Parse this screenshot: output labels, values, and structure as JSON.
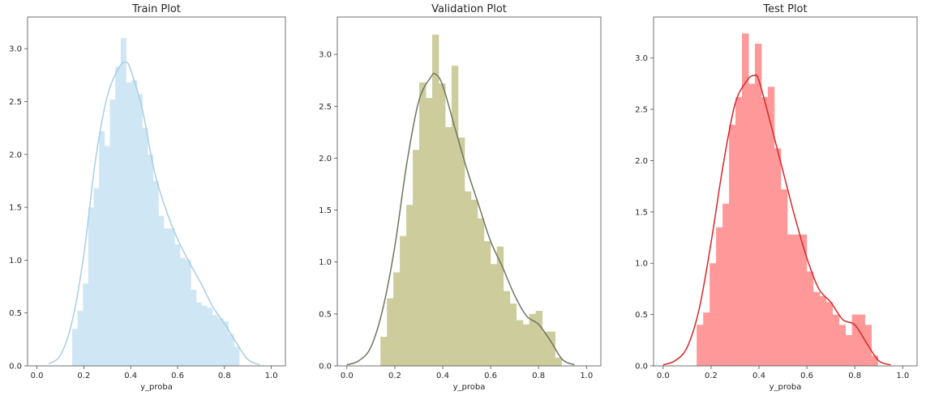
{
  "chart_data": [
    {
      "type": "histogram",
      "title": "Train Plot",
      "xlabel": "y_proba",
      "ylabel": "",
      "xlim": [
        -0.04,
        1.06
      ],
      "ylim": [
        0,
        3.3
      ],
      "xticks": [
        "0.0",
        "0.2",
        "0.4",
        "0.6",
        "0.8",
        "1.0"
      ],
      "yticks": [
        "0.0",
        "0.5",
        "1.0",
        "1.5",
        "2.0",
        "2.5",
        "3.0"
      ],
      "bar_color": "#cfe7f5",
      "kde_color": "#a9cde4",
      "grid": false,
      "bins": [
        {
          "x0": 0.15,
          "x1": 0.173,
          "y": 0.35
        },
        {
          "x0": 0.173,
          "x1": 0.196,
          "y": 0.52
        },
        {
          "x0": 0.196,
          "x1": 0.219,
          "y": 0.78
        },
        {
          "x0": 0.219,
          "x1": 0.242,
          "y": 1.5
        },
        {
          "x0": 0.242,
          "x1": 0.265,
          "y": 1.68
        },
        {
          "x0": 0.265,
          "x1": 0.288,
          "y": 2.22
        },
        {
          "x0": 0.288,
          "x1": 0.311,
          "y": 2.08
        },
        {
          "x0": 0.311,
          "x1": 0.334,
          "y": 2.52
        },
        {
          "x0": 0.334,
          "x1": 0.357,
          "y": 2.83
        },
        {
          "x0": 0.357,
          "x1": 0.38,
          "y": 3.1
        },
        {
          "x0": 0.38,
          "x1": 0.403,
          "y": 2.68
        },
        {
          "x0": 0.403,
          "x1": 0.426,
          "y": 2.7
        },
        {
          "x0": 0.426,
          "x1": 0.449,
          "y": 2.57
        },
        {
          "x0": 0.449,
          "x1": 0.472,
          "y": 2.25
        },
        {
          "x0": 0.472,
          "x1": 0.495,
          "y": 2.0
        },
        {
          "x0": 0.495,
          "x1": 0.518,
          "y": 1.75
        },
        {
          "x0": 0.518,
          "x1": 0.541,
          "y": 1.42
        },
        {
          "x0": 0.541,
          "x1": 0.564,
          "y": 1.3
        },
        {
          "x0": 0.564,
          "x1": 0.587,
          "y": 1.3
        },
        {
          "x0": 0.587,
          "x1": 0.61,
          "y": 1.15
        },
        {
          "x0": 0.61,
          "x1": 0.633,
          "y": 1.02
        },
        {
          "x0": 0.633,
          "x1": 0.656,
          "y": 1.0
        },
        {
          "x0": 0.656,
          "x1": 0.679,
          "y": 0.72
        },
        {
          "x0": 0.679,
          "x1": 0.702,
          "y": 0.6
        },
        {
          "x0": 0.702,
          "x1": 0.725,
          "y": 0.57
        },
        {
          "x0": 0.725,
          "x1": 0.748,
          "y": 0.55
        },
        {
          "x0": 0.748,
          "x1": 0.771,
          "y": 0.48
        },
        {
          "x0": 0.771,
          "x1": 0.794,
          "y": 0.45
        },
        {
          "x0": 0.794,
          "x1": 0.817,
          "y": 0.42
        },
        {
          "x0": 0.817,
          "x1": 0.84,
          "y": 0.3
        },
        {
          "x0": 0.84,
          "x1": 0.863,
          "y": 0.18
        }
      ],
      "kde": {
        "x": [
          0.05,
          0.1,
          0.15,
          0.2,
          0.25,
          0.3,
          0.35,
          0.38,
          0.4,
          0.45,
          0.5,
          0.55,
          0.6,
          0.65,
          0.7,
          0.75,
          0.8,
          0.85,
          0.9,
          0.95
        ],
        "y": [
          0.02,
          0.1,
          0.42,
          1.05,
          1.95,
          2.55,
          2.82,
          2.87,
          2.8,
          2.42,
          1.85,
          1.48,
          1.2,
          0.98,
          0.78,
          0.56,
          0.4,
          0.22,
          0.06,
          0.01
        ]
      }
    },
    {
      "type": "histogram",
      "title": "Validation Plot",
      "xlabel": "y_proba",
      "ylabel": "",
      "xlim": [
        -0.04,
        1.06
      ],
      "ylim": [
        0,
        3.36
      ],
      "xticks": [
        "0.0",
        "0.2",
        "0.4",
        "0.6",
        "0.8",
        "1.0"
      ],
      "yticks": [
        "0.0",
        "0.5",
        "1.0",
        "1.5",
        "2.0",
        "2.5",
        "3.0"
      ],
      "bar_color": "#cdcc9c",
      "kde_color": "#6e7660",
      "grid": false,
      "bins": [
        {
          "x0": 0.14,
          "x1": 0.167,
          "y": 0.28
        },
        {
          "x0": 0.167,
          "x1": 0.194,
          "y": 0.65
        },
        {
          "x0": 0.194,
          "x1": 0.221,
          "y": 0.9
        },
        {
          "x0": 0.221,
          "x1": 0.248,
          "y": 1.25
        },
        {
          "x0": 0.248,
          "x1": 0.275,
          "y": 1.55
        },
        {
          "x0": 0.275,
          "x1": 0.302,
          "y": 2.08
        },
        {
          "x0": 0.302,
          "x1": 0.329,
          "y": 2.73
        },
        {
          "x0": 0.329,
          "x1": 0.356,
          "y": 2.58
        },
        {
          "x0": 0.356,
          "x1": 0.383,
          "y": 3.19
        },
        {
          "x0": 0.383,
          "x1": 0.41,
          "y": 2.72
        },
        {
          "x0": 0.41,
          "x1": 0.437,
          "y": 2.3
        },
        {
          "x0": 0.437,
          "x1": 0.464,
          "y": 2.89
        },
        {
          "x0": 0.464,
          "x1": 0.491,
          "y": 2.2
        },
        {
          "x0": 0.491,
          "x1": 0.518,
          "y": 1.68
        },
        {
          "x0": 0.518,
          "x1": 0.545,
          "y": 1.6
        },
        {
          "x0": 0.545,
          "x1": 0.572,
          "y": 1.42
        },
        {
          "x0": 0.572,
          "x1": 0.599,
          "y": 1.2
        },
        {
          "x0": 0.599,
          "x1": 0.626,
          "y": 0.98
        },
        {
          "x0": 0.626,
          "x1": 0.653,
          "y": 1.15
        },
        {
          "x0": 0.653,
          "x1": 0.68,
          "y": 0.72
        },
        {
          "x0": 0.68,
          "x1": 0.707,
          "y": 0.6
        },
        {
          "x0": 0.707,
          "x1": 0.734,
          "y": 0.44
        },
        {
          "x0": 0.734,
          "x1": 0.761,
          "y": 0.4
        },
        {
          "x0": 0.761,
          "x1": 0.788,
          "y": 0.5
        },
        {
          "x0": 0.788,
          "x1": 0.815,
          "y": 0.53
        },
        {
          "x0": 0.815,
          "x1": 0.842,
          "y": 0.33
        },
        {
          "x0": 0.842,
          "x1": 0.869,
          "y": 0.33
        },
        {
          "x0": 0.869,
          "x1": 0.896,
          "y": 0.08
        }
      ],
      "kde": {
        "x": [
          0.0,
          0.05,
          0.1,
          0.15,
          0.2,
          0.25,
          0.3,
          0.35,
          0.37,
          0.4,
          0.45,
          0.5,
          0.55,
          0.6,
          0.65,
          0.7,
          0.75,
          0.8,
          0.85,
          0.9,
          0.95
        ],
        "y": [
          0.01,
          0.05,
          0.18,
          0.55,
          1.15,
          1.95,
          2.55,
          2.78,
          2.81,
          2.7,
          2.3,
          1.9,
          1.55,
          1.2,
          0.95,
          0.68,
          0.48,
          0.4,
          0.24,
          0.06,
          0.01
        ]
      }
    },
    {
      "type": "histogram",
      "title": "Test Plot",
      "xlabel": "y_proba",
      "ylabel": "",
      "xlim": [
        -0.04,
        1.06
      ],
      "ylim": [
        0,
        3.4
      ],
      "xticks": [
        "0.0",
        "0.2",
        "0.4",
        "0.6",
        "0.8",
        "1.0"
      ],
      "yticks": [
        "0.0",
        "0.5",
        "1.0",
        "1.5",
        "2.0",
        "2.5",
        "3.0"
      ],
      "bar_color": "#ff9999",
      "kde_color": "#d62728",
      "grid": false,
      "bins": [
        {
          "x0": 0.14,
          "x1": 0.167,
          "y": 0.4
        },
        {
          "x0": 0.167,
          "x1": 0.194,
          "y": 0.52
        },
        {
          "x0": 0.194,
          "x1": 0.221,
          "y": 1.0
        },
        {
          "x0": 0.221,
          "x1": 0.248,
          "y": 1.35
        },
        {
          "x0": 0.248,
          "x1": 0.275,
          "y": 1.58
        },
        {
          "x0": 0.275,
          "x1": 0.302,
          "y": 2.35
        },
        {
          "x0": 0.302,
          "x1": 0.329,
          "y": 2.62
        },
        {
          "x0": 0.329,
          "x1": 0.356,
          "y": 3.24
        },
        {
          "x0": 0.356,
          "x1": 0.383,
          "y": 2.75
        },
        {
          "x0": 0.383,
          "x1": 0.41,
          "y": 3.14
        },
        {
          "x0": 0.41,
          "x1": 0.437,
          "y": 2.62
        },
        {
          "x0": 0.437,
          "x1": 0.464,
          "y": 2.72
        },
        {
          "x0": 0.464,
          "x1": 0.491,
          "y": 2.12
        },
        {
          "x0": 0.491,
          "x1": 0.518,
          "y": 1.72
        },
        {
          "x0": 0.518,
          "x1": 0.545,
          "y": 1.28
        },
        {
          "x0": 0.545,
          "x1": 0.572,
          "y": 1.28
        },
        {
          "x0": 0.572,
          "x1": 0.599,
          "y": 1.28
        },
        {
          "x0": 0.599,
          "x1": 0.626,
          "y": 0.92
        },
        {
          "x0": 0.626,
          "x1": 0.653,
          "y": 0.72
        },
        {
          "x0": 0.653,
          "x1": 0.68,
          "y": 0.68
        },
        {
          "x0": 0.68,
          "x1": 0.707,
          "y": 0.62
        },
        {
          "x0": 0.707,
          "x1": 0.734,
          "y": 0.5
        },
        {
          "x0": 0.734,
          "x1": 0.761,
          "y": 0.4
        },
        {
          "x0": 0.761,
          "x1": 0.788,
          "y": 0.3
        },
        {
          "x0": 0.788,
          "x1": 0.815,
          "y": 0.5
        },
        {
          "x0": 0.815,
          "x1": 0.842,
          "y": 0.5
        },
        {
          "x0": 0.842,
          "x1": 0.869,
          "y": 0.4
        },
        {
          "x0": 0.869,
          "x1": 0.896,
          "y": 0.1
        }
      ],
      "kde": {
        "x": [
          0.0,
          0.05,
          0.1,
          0.15,
          0.2,
          0.25,
          0.3,
          0.35,
          0.38,
          0.4,
          0.45,
          0.5,
          0.55,
          0.6,
          0.65,
          0.7,
          0.75,
          0.8,
          0.85,
          0.9,
          0.95
        ],
        "y": [
          0.01,
          0.05,
          0.18,
          0.55,
          1.2,
          1.95,
          2.55,
          2.78,
          2.83,
          2.78,
          2.35,
          1.9,
          1.45,
          1.05,
          0.75,
          0.62,
          0.45,
          0.4,
          0.22,
          0.05,
          0.01
        ]
      }
    }
  ]
}
